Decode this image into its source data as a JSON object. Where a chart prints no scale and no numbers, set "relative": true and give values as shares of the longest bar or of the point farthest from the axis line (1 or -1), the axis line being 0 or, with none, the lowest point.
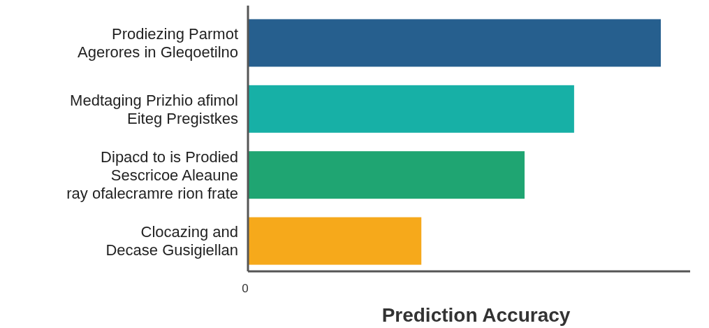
{
  "chart_data": {
    "type": "bar",
    "orientation": "horizontal",
    "relative": true,
    "xlabel": "Prediction Accuracy",
    "categories": [
      "Prodiezing Parmot\nAgerores in Gleqoetilno",
      "Medtaging Prizhio afimol\nEiteg Pregistkes",
      "Dipacd to is Prodied\nSescricoe Aleaune\nray ofalecramre rion frate",
      "Clocazing and\nDecase Gusigiellan"
    ],
    "values": [
      1,
      0.79,
      0.67,
      0.42
    ],
    "colors": [
      "#265f8e",
      "#17b0a6",
      "#1fa572",
      "#f6a91b"
    ],
    "annotations": [
      "0"
    ]
  }
}
